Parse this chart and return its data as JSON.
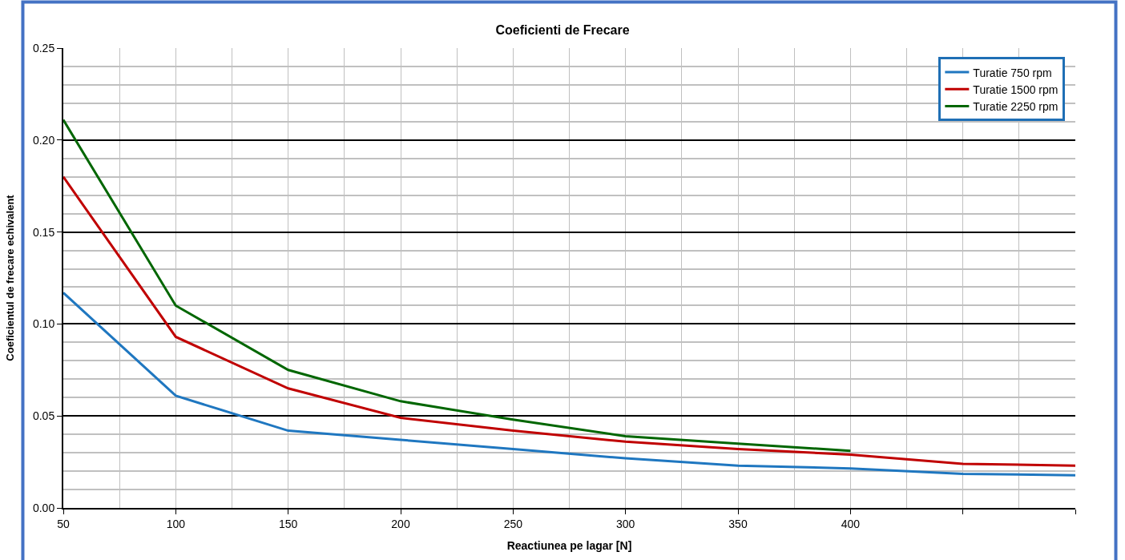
{
  "chart_data": {
    "type": "line",
    "title": "Coeficienti de Frecare",
    "xlabel": "Reactiunea pe lagar [N]",
    "ylabel": "Coeficientul de frecare echivalent",
    "x": [
      50,
      100,
      150,
      200,
      250,
      300,
      350,
      400,
      450,
      500
    ],
    "series": [
      {
        "name": "Turatie 750 rpm",
        "color": "#1f77c0",
        "values": [
          0.117,
          0.061,
          0.042,
          0.037,
          0.032,
          0.027,
          0.023,
          0.0215,
          0.0185,
          0.0178
        ]
      },
      {
        "name": "Turatie 1500 rpm",
        "color": "#c00000",
        "values": [
          0.18,
          0.093,
          0.065,
          0.049,
          0.042,
          0.036,
          0.032,
          0.029,
          0.024,
          0.023
        ]
      },
      {
        "name": "Turatie 2250 rpm",
        "color": "#006600",
        "values": [
          0.211,
          0.11,
          0.075,
          0.058,
          0.048,
          0.039,
          0.035,
          0.031,
          null,
          null
        ]
      }
    ],
    "xlim": [
      50,
      500
    ],
    "xticks": [
      50,
      100,
      150,
      200,
      250,
      300,
      350,
      400,
      {
        "value": 450,
        "label": null
      },
      {
        "value": 500,
        "label": null
      }
    ],
    "ylim": [
      0,
      0.25
    ],
    "yticks": [
      {
        "value": 0,
        "label": "0.00"
      },
      {
        "value": 0.05,
        "label": "0.05"
      },
      {
        "value": 0.1,
        "label": "0.10"
      },
      {
        "value": 0.15,
        "label": "0.15"
      },
      {
        "value": 0.2,
        "label": "0.20"
      },
      {
        "value": 0.25,
        "label": "0.25"
      }
    ],
    "grid": true,
    "legend": "top right",
    "marker": "none",
    "line_style": "solid"
  }
}
